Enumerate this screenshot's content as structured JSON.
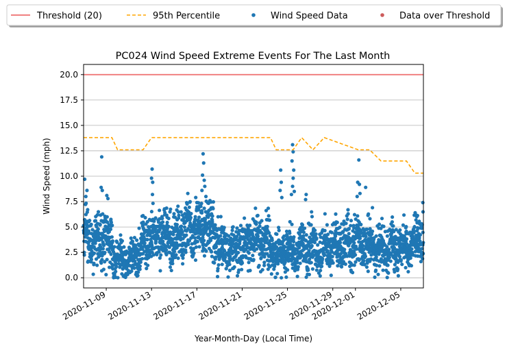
{
  "chart_data": {
    "type": "scatter",
    "title": "PC024 Wind Speed Extreme Events For The Last Month",
    "xlabel": "Year-Month-Day (Local Time)",
    "ylabel": "Wind Speed (mph)",
    "x_range": [
      "2020-11-07",
      "2020-12-07"
    ],
    "ylim": [
      -1.0,
      21.0
    ],
    "y_ticks": [
      "0.0",
      "2.5",
      "5.0",
      "7.5",
      "10.0",
      "12.5",
      "15.0",
      "17.5",
      "20.0"
    ],
    "x_ticks": [
      "2020-11-09",
      "2020-11-13",
      "2020-11-17",
      "2020-11-21",
      "2020-11-25",
      "2020-11-29",
      "2020-12-01",
      "2020-12-05"
    ],
    "grid": "horizontal",
    "legend": {
      "placement": "top, outside plot",
      "entries": [
        {
          "label": "Threshold (20)",
          "kind": "line"
        },
        {
          "label": "95th Percentile",
          "kind": "dashed-line"
        },
        {
          "label": "Wind Speed Data",
          "kind": "marker"
        },
        {
          "label": "Data over Threshold",
          "kind": "marker"
        }
      ]
    },
    "colors": {
      "threshold": "#f08080",
      "percentile": "#ffa500",
      "data": "#1f77b4",
      "over_threshold": "#cd5c5c",
      "grid": "#b0b0b0"
    },
    "series": [
      {
        "name": "Threshold (20)",
        "style": "line",
        "x": [
          "2020-11-07",
          "2020-12-07"
        ],
        "y": [
          20,
          20
        ]
      },
      {
        "name": "95th Percentile",
        "style": "dashed-step",
        "x": [
          "2020-11-07",
          "2020-11-09.5",
          "2020-11-10",
          "2020-11-12.25",
          "2020-11-13",
          "2020-11-23.5",
          "2020-11-24",
          "2020-11-25.5",
          "2020-11-26.25",
          "2020-11-27.25",
          "2020-11-28.25",
          "2020-11-30",
          "2020-12-01.25",
          "2020-12-02.25",
          "2020-12-03.25",
          "2020-12-05.5",
          "2020-12-06.25",
          "2020-12-07"
        ],
        "y": [
          13.8,
          13.8,
          12.6,
          12.6,
          13.8,
          13.8,
          12.6,
          12.6,
          13.8,
          12.6,
          13.8,
          13.1,
          12.6,
          12.6,
          11.5,
          11.5,
          10.3,
          10.3
        ]
      },
      {
        "name": "Wind Speed Data",
        "style": "scatter",
        "baseline": [
          {
            "day": 0.0,
            "base": 4.2,
            "spread": 2.6
          },
          {
            "day": 1.0,
            "base": 3.3,
            "spread": 2.6
          },
          {
            "day": 2.0,
            "base": 4.0,
            "spread": 2.8
          },
          {
            "day": 3.0,
            "base": 1.8,
            "spread": 2.0
          },
          {
            "day": 4.0,
            "base": 1.6,
            "spread": 1.8
          },
          {
            "day": 5.0,
            "base": 2.8,
            "spread": 2.2
          },
          {
            "day": 6.0,
            "base": 4.0,
            "spread": 2.5
          },
          {
            "day": 7.0,
            "base": 4.3,
            "spread": 2.4
          },
          {
            "day": 8.0,
            "base": 3.8,
            "spread": 2.6
          },
          {
            "day": 9.0,
            "base": 4.6,
            "spread": 2.8
          },
          {
            "day": 10.0,
            "base": 4.9,
            "spread": 2.8
          },
          {
            "day": 11.0,
            "base": 5.1,
            "spread": 2.8
          },
          {
            "day": 12.0,
            "base": 3.1,
            "spread": 2.4
          },
          {
            "day": 13.0,
            "base": 2.6,
            "spread": 2.2
          },
          {
            "day": 14.0,
            "base": 3.2,
            "spread": 2.3
          },
          {
            "day": 15.0,
            "base": 3.7,
            "spread": 2.4
          },
          {
            "day": 16.0,
            "base": 3.5,
            "spread": 2.4
          },
          {
            "day": 17.0,
            "base": 2.5,
            "spread": 2.2
          },
          {
            "day": 18.0,
            "base": 2.7,
            "spread": 2.2
          },
          {
            "day": 19.0,
            "base": 2.8,
            "spread": 2.3
          },
          {
            "day": 20.0,
            "base": 3.0,
            "spread": 2.3
          },
          {
            "day": 21.0,
            "base": 3.0,
            "spread": 2.3
          },
          {
            "day": 22.0,
            "base": 3.3,
            "spread": 2.3
          },
          {
            "day": 23.0,
            "base": 3.5,
            "spread": 2.4
          },
          {
            "day": 24.0,
            "base": 3.6,
            "spread": 2.4
          },
          {
            "day": 25.0,
            "base": 3.2,
            "spread": 2.2
          },
          {
            "day": 26.0,
            "base": 2.8,
            "spread": 2.2
          },
          {
            "day": 27.0,
            "base": 2.9,
            "spread": 2.2
          },
          {
            "day": 28.0,
            "base": 3.0,
            "spread": 2.2
          },
          {
            "day": 29.0,
            "base": 3.3,
            "spread": 2.3
          },
          {
            "day": 30.0,
            "base": 4.0,
            "spread": 2.6
          }
        ],
        "peaks": [
          {
            "day": 0.1,
            "y": 9.7
          },
          {
            "day": 0.3,
            "y": 8.6
          },
          {
            "day": 0.2,
            "y": 8.0
          },
          {
            "day": 1.55,
            "y": 8.9
          },
          {
            "day": 1.6,
            "y": 11.9
          },
          {
            "day": 1.65,
            "y": 8.6
          },
          {
            "day": 2.05,
            "y": 8.1
          },
          {
            "day": 2.15,
            "y": 7.8
          },
          {
            "day": 6.05,
            "y": 10.7
          },
          {
            "day": 6.0,
            "y": 9.8
          },
          {
            "day": 6.1,
            "y": 9.4
          },
          {
            "day": 6.08,
            "y": 8.2
          },
          {
            "day": 9.2,
            "y": 8.3
          },
          {
            "day": 9.9,
            "y": 7.9
          },
          {
            "day": 10.55,
            "y": 12.2
          },
          {
            "day": 10.6,
            "y": 11.3
          },
          {
            "day": 10.5,
            "y": 10.1
          },
          {
            "day": 10.65,
            "y": 9.6
          },
          {
            "day": 10.7,
            "y": 9.0
          },
          {
            "day": 10.45,
            "y": 8.6
          },
          {
            "day": 10.8,
            "y": 8.0
          },
          {
            "day": 17.4,
            "y": 10.6
          },
          {
            "day": 17.45,
            "y": 9.4
          },
          {
            "day": 17.35,
            "y": 8.6
          },
          {
            "day": 17.5,
            "y": 7.9
          },
          {
            "day": 18.45,
            "y": 13.1
          },
          {
            "day": 18.5,
            "y": 12.4
          },
          {
            "day": 18.4,
            "y": 11.5
          },
          {
            "day": 18.55,
            "y": 10.6
          },
          {
            "day": 18.5,
            "y": 9.8
          },
          {
            "day": 18.45,
            "y": 9.0
          },
          {
            "day": 18.6,
            "y": 8.5
          },
          {
            "day": 18.35,
            "y": 8.2
          },
          {
            "day": 19.65,
            "y": 8.2
          },
          {
            "day": 19.6,
            "y": 7.7
          },
          {
            "day": 24.3,
            "y": 11.6
          },
          {
            "day": 24.2,
            "y": 9.4
          },
          {
            "day": 24.35,
            "y": 9.2
          },
          {
            "day": 24.4,
            "y": 8.3
          },
          {
            "day": 24.15,
            "y": 8.0
          },
          {
            "day": 24.9,
            "y": 8.9
          },
          {
            "day": 25.5,
            "y": 6.9
          },
          {
            "day": 29.95,
            "y": 7.4
          }
        ]
      },
      {
        "name": "Data over Threshold",
        "style": "scatter",
        "x": [],
        "y": []
      }
    ]
  }
}
